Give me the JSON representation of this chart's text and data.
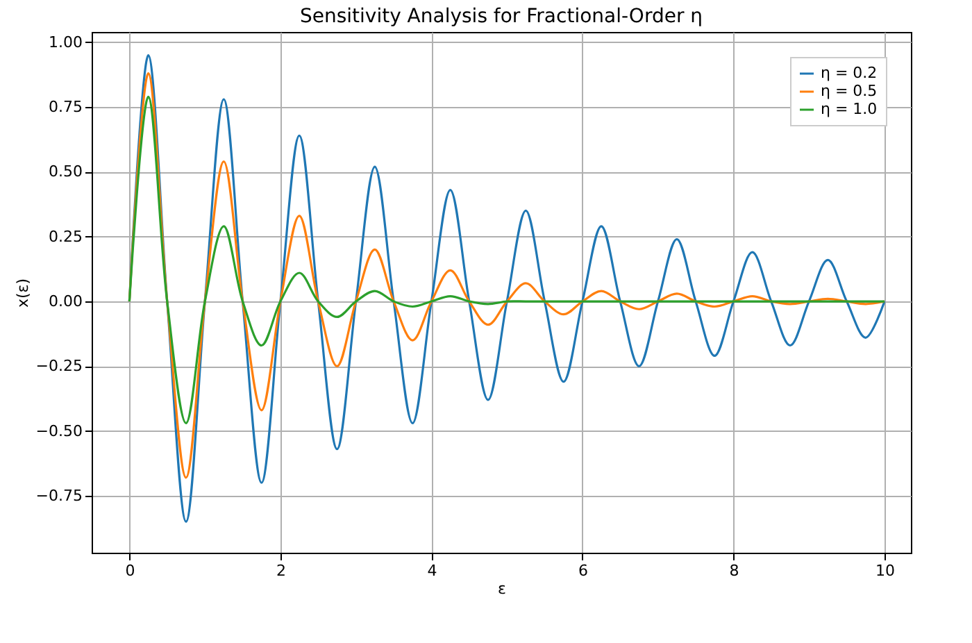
{
  "chart_data": {
    "type": "line",
    "title": "Sensitivity Analysis for Fractional-Order η",
    "xlabel": "ε",
    "ylabel": "x(ε)",
    "x": [
      0,
      0.25,
      0.5,
      0.75,
      1,
      1.25,
      1.5,
      1.75,
      2,
      2.25,
      2.5,
      2.75,
      3,
      3.25,
      3.5,
      3.75,
      4,
      4.25,
      4.5,
      4.75,
      5,
      5.25,
      5.5,
      5.75,
      6,
      6.25,
      6.5,
      6.75,
      7,
      7.25,
      7.5,
      7.75,
      8,
      8.25,
      8.5,
      8.75,
      9,
      9.25,
      9.5,
      9.75,
      10
    ],
    "series": [
      {
        "name": "η = 0.2",
        "color": "#1f77b4",
        "values": [
          0,
          0.95,
          0,
          -0.85,
          0,
          0.78,
          0,
          -0.7,
          0,
          0.64,
          0,
          -0.57,
          0,
          0.52,
          0,
          -0.47,
          0,
          0.43,
          0,
          -0.38,
          0,
          0.35,
          0,
          -0.31,
          0,
          0.29,
          0,
          -0.25,
          0,
          0.24,
          0,
          -0.21,
          0,
          0.19,
          0,
          -0.17,
          0,
          0.16,
          0,
          -0.14,
          0
        ]
      },
      {
        "name": "η = 0.5",
        "color": "#ff7f0e",
        "values": [
          0,
          0.88,
          0,
          -0.68,
          0,
          0.54,
          0,
          -0.42,
          0,
          0.33,
          0,
          -0.25,
          0,
          0.2,
          0,
          -0.15,
          0,
          0.12,
          0,
          -0.09,
          0,
          0.07,
          0,
          -0.05,
          0,
          0.04,
          0,
          -0.03,
          0,
          0.03,
          0,
          -0.02,
          0,
          0.02,
          0,
          -0.01,
          0,
          0.01,
          0,
          -0.01,
          0
        ]
      },
      {
        "name": "η = 1.0",
        "color": "#2ca02c",
        "values": [
          0,
          0.79,
          0,
          -0.47,
          0,
          0.29,
          0,
          -0.17,
          0,
          0.11,
          0,
          -0.06,
          0,
          0.04,
          0,
          -0.02,
          0,
          0.02,
          0,
          -0.01,
          0,
          0,
          0,
          0,
          0,
          0,
          0,
          0,
          0,
          0,
          0,
          0,
          0,
          0,
          0,
          0,
          0,
          0,
          0,
          0,
          0
        ]
      }
    ],
    "xlim": [
      -0.5,
      10.35
    ],
    "xticks": [
      0,
      2,
      4,
      6,
      8,
      10
    ],
    "ylim": [
      -0.97,
      1.04
    ],
    "yticks": [
      {
        "value": -0.75,
        "label": "−0.75"
      },
      {
        "value": -0.5,
        "label": "−0.50"
      },
      {
        "value": -0.25,
        "label": "−0.25"
      },
      {
        "value": 0,
        "label": "0.00"
      },
      {
        "value": 0.25,
        "label": "0.25"
      },
      {
        "value": 0.5,
        "label": "0.50"
      },
      {
        "value": 0.75,
        "label": "0.75"
      },
      {
        "value": 1,
        "label": "1.00"
      }
    ],
    "grid": true,
    "legend": "top right",
    "marker": "none",
    "line_style": "solid"
  }
}
